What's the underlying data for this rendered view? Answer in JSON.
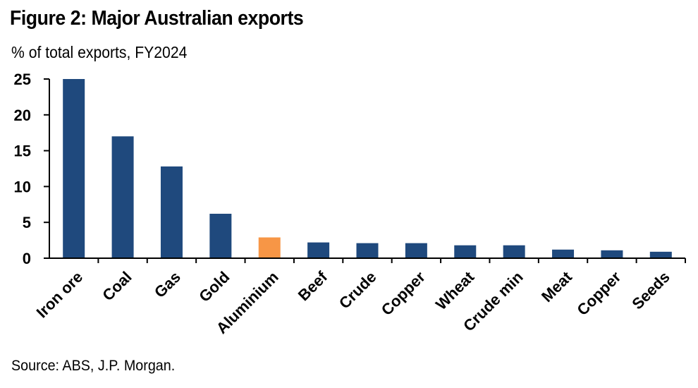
{
  "header": {
    "title": "Figure 2: Major Australian exports",
    "subtitle": "% of total exports, FY2024"
  },
  "footer": {
    "source": "Source: ABS, J.P. Morgan."
  },
  "colors": {
    "default_bar": "#1f497d",
    "highlight_bar": "#f79646",
    "axis": "#000000"
  },
  "chart_data": {
    "type": "bar",
    "title": "Figure 2: Major Australian exports",
    "subtitle": "% of total exports, FY2024",
    "xlabel": "",
    "ylabel": "",
    "ylim": [
      0,
      25
    ],
    "yticks": [
      0,
      5,
      10,
      15,
      20,
      25
    ],
    "grid": false,
    "legend": "none",
    "categories": [
      "Iron ore",
      "Coal",
      "Gas",
      "Gold",
      "Aluminium",
      "Beef",
      "Crude",
      "Copper",
      "Wheat",
      "Crude min",
      "Meat",
      "Copper",
      "Seeds"
    ],
    "values": [
      25,
      17,
      12.8,
      6.2,
      2.9,
      2.2,
      2.1,
      2.1,
      1.8,
      1.8,
      1.2,
      1.1,
      0.9
    ],
    "highlight_index": 4
  }
}
